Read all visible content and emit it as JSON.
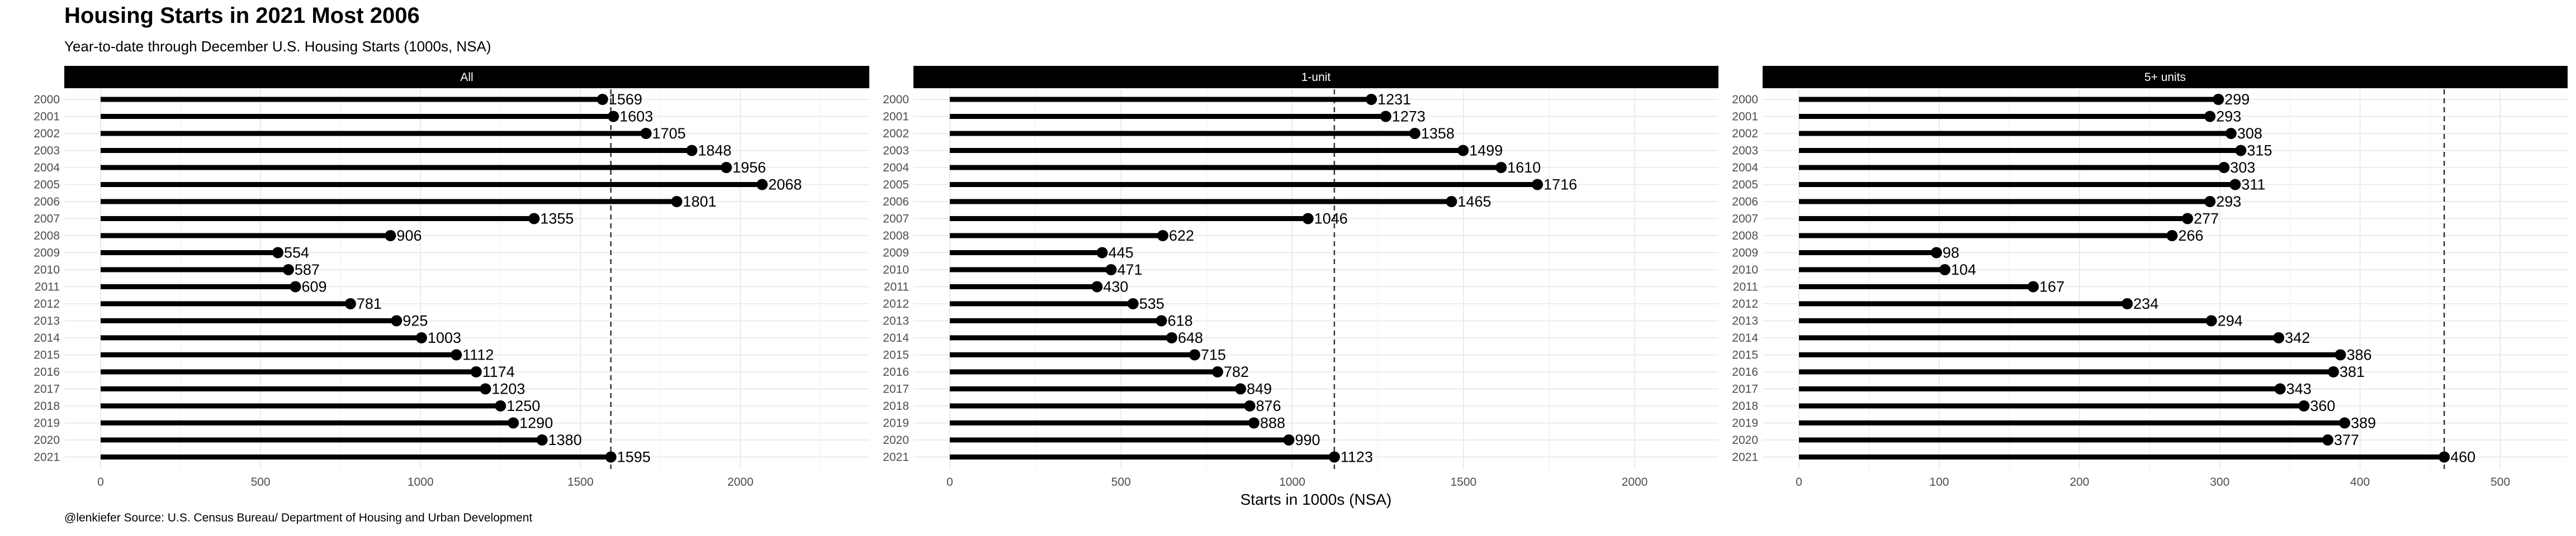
{
  "title": "Housing Starts in 2021 Most 2006",
  "subtitle": "Year-to-date through December U.S. Housing Starts (1000s, NSA)",
  "caption": "@lenkiefer Source: U.S. Census Bureau/ Department of Housing and Urban Development",
  "colors": {
    "bar": "#000000",
    "strip": "#000000",
    "grid": "#ebebeb",
    "refline": "#333333"
  },
  "chart_data": {
    "type": "lollipop",
    "xlabel": "Starts in 1000s (NSA)",
    "ylabel": "",
    "grid": true,
    "categories": [
      "2000",
      "2001",
      "2002",
      "2003",
      "2004",
      "2005",
      "2006",
      "2007",
      "2008",
      "2009",
      "2010",
      "2011",
      "2012",
      "2013",
      "2014",
      "2015",
      "2016",
      "2017",
      "2018",
      "2019",
      "2020",
      "2021"
    ],
    "panels": [
      {
        "name": "All",
        "xlim": [
          0,
          2368
        ],
        "xticks": [
          0,
          500,
          1000,
          1500,
          2000
        ],
        "reference_value": 1595,
        "values": [
          1569,
          1603,
          1705,
          1848,
          1956,
          2068,
          1801,
          1355,
          906,
          554,
          587,
          609,
          781,
          925,
          1003,
          1112,
          1174,
          1203,
          1250,
          1290,
          1380,
          1595
        ]
      },
      {
        "name": "1-unit",
        "xlim": [
          0,
          2212
        ],
        "xticks": [
          0,
          500,
          1000,
          1500,
          2000
        ],
        "reference_value": 1123,
        "values": [
          1231,
          1273,
          1358,
          1499,
          1610,
          1716,
          1465,
          1046,
          622,
          445,
          471,
          430,
          535,
          618,
          648,
          715,
          782,
          849,
          876,
          888,
          990,
          1123
        ]
      },
      {
        "name": "5+ units",
        "xlim": [
          0,
          540
        ],
        "xticks": [
          0,
          100,
          200,
          300,
          400,
          500
        ],
        "reference_value": 460,
        "values": [
          299,
          293,
          308,
          315,
          303,
          311,
          293,
          277,
          266,
          98,
          104,
          167,
          234,
          294,
          342,
          386,
          381,
          343,
          360,
          389,
          377,
          460
        ]
      }
    ]
  }
}
